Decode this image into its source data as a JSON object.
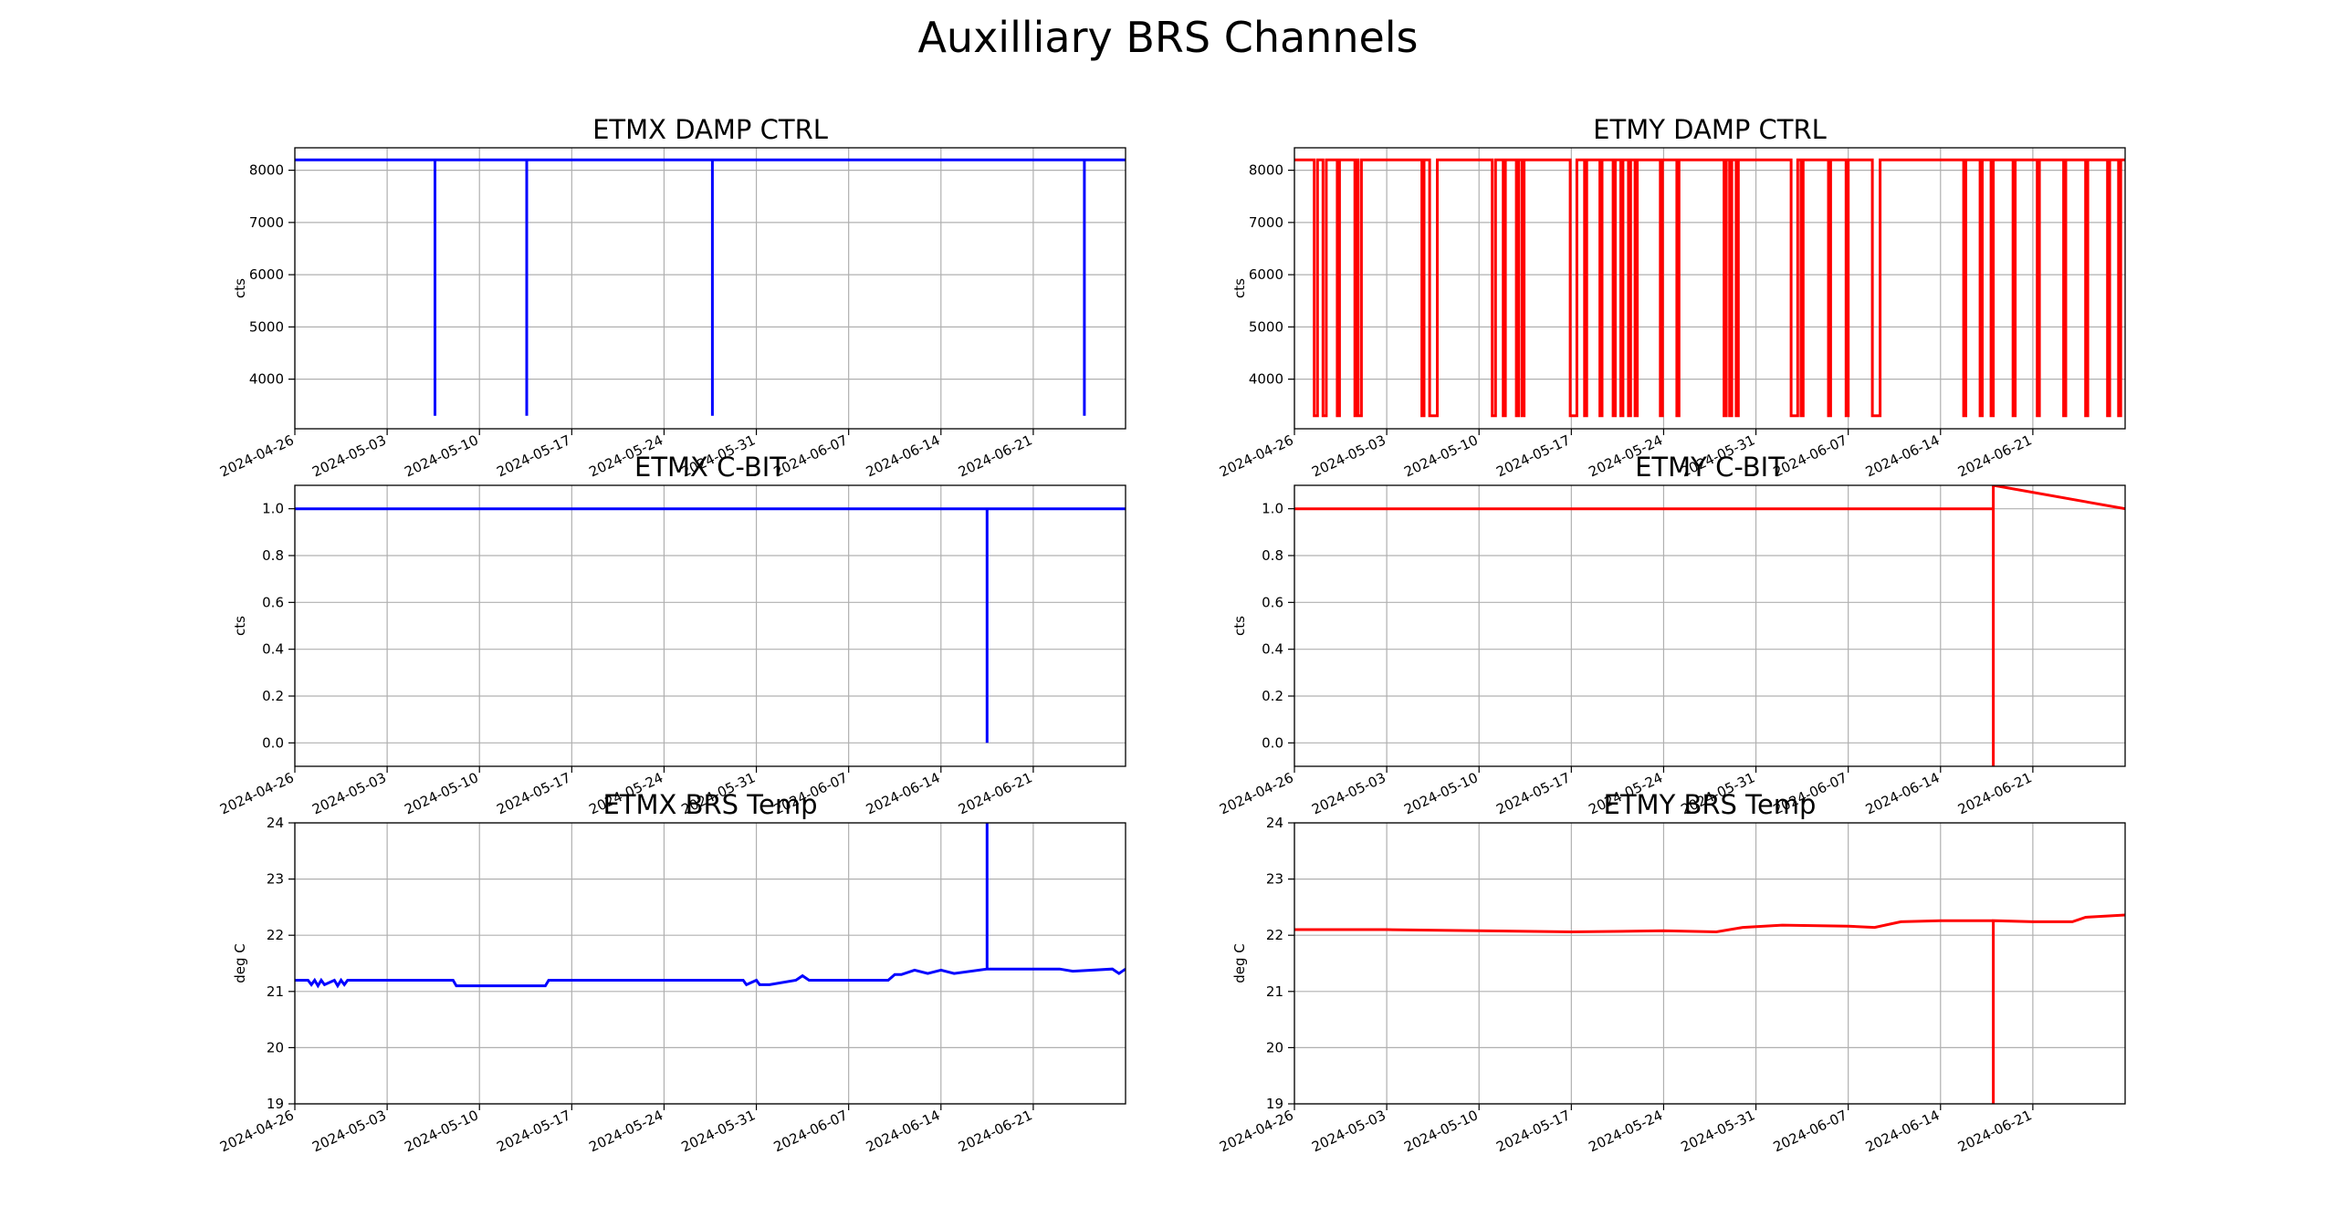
{
  "title": "Auxilliary BRS Channels",
  "x_tick_labels": [
    "2024-04-26",
    "2024-05-03",
    "2024-05-10",
    "2024-05-17",
    "2024-05-24",
    "2024-05-31",
    "2024-06-07",
    "2024-06-14",
    "2024-06-21"
  ],
  "chart_data": [
    {
      "type": "line",
      "title": "ETMX DAMP CTRL",
      "ylabel": "cts",
      "xlim": [
        "2024-04-26",
        "2024-06-28"
      ],
      "ylim": [
        3050,
        8430
      ],
      "yticks": [
        4000,
        5000,
        6000,
        7000,
        8000
      ],
      "grid": true,
      "color": "#0000ff",
      "kind": "step",
      "baseline": 8200,
      "series": [
        {
          "x": [
            "2024-04-26",
            "2024-05-06 15:00",
            "2024-05-06 15:00",
            "2024-05-06 15:00",
            "2024-05-13 14:00",
            "2024-05-13 14:00",
            "2024-05-13 14:00",
            "2024-05-27 16:00",
            "2024-05-27 16:00",
            "2024-05-27 16:00",
            "2024-06-24 21:00",
            "2024-06-24 21:00",
            "2024-06-24 21:00",
            "2024-06-28"
          ],
          "y": [
            8200,
            8200,
            3300,
            8200,
            8200,
            3300,
            8200,
            8200,
            3300,
            8200,
            8200,
            3300,
            8200,
            8200
          ]
        }
      ]
    },
    {
      "type": "line",
      "title": "ETMY DAMP CTRL",
      "ylabel": "cts",
      "xlim": [
        "2024-04-26",
        "2024-06-28"
      ],
      "ylim": [
        3050,
        8430
      ],
      "yticks": [
        4000,
        5000,
        6000,
        7000,
        8000
      ],
      "grid": true,
      "color": "#ff0000",
      "kind": "step",
      "high": 8200,
      "low": 3300,
      "low_intervals": [
        [
          "2024-04-27 12:00",
          "2024-04-27 18:00"
        ],
        [
          "2024-04-28 04:00",
          "2024-04-28 10:00"
        ],
        [
          "2024-04-29 06:00",
          "2024-04-29 10:00"
        ],
        [
          "2024-04-30 14:00",
          "2024-04-30 18:00"
        ],
        [
          "2024-04-30 20:00",
          "2024-05-01 02:00"
        ],
        [
          "2024-05-05 16:00",
          "2024-05-05 20:00"
        ],
        [
          "2024-05-06 06:00",
          "2024-05-06 20:00"
        ],
        [
          "2024-05-11 00:00",
          "2024-05-11 06:00"
        ],
        [
          "2024-05-11 20:00",
          "2024-05-12 00:00"
        ],
        [
          "2024-05-12 20:00",
          "2024-05-13 00:00"
        ],
        [
          "2024-05-13 06:00",
          "2024-05-13 10:00"
        ],
        [
          "2024-05-16 22:00",
          "2024-05-17 10:00"
        ],
        [
          "2024-05-18 00:00",
          "2024-05-18 04:00"
        ],
        [
          "2024-05-19 04:00",
          "2024-05-19 08:00"
        ],
        [
          "2024-05-20 04:00",
          "2024-05-20 08:00"
        ],
        [
          "2024-05-20 18:00",
          "2024-05-20 22:00"
        ],
        [
          "2024-05-21 08:00",
          "2024-05-21 12:00"
        ],
        [
          "2024-05-21 20:00",
          "2024-05-22 00:00"
        ],
        [
          "2024-05-23 18:00",
          "2024-05-23 22:00"
        ],
        [
          "2024-05-25 00:00",
          "2024-05-25 04:00"
        ],
        [
          "2024-05-28 14:00",
          "2024-05-28 18:00"
        ],
        [
          "2024-05-29 00:00",
          "2024-05-29 04:00"
        ],
        [
          "2024-05-29 12:00",
          "2024-05-29 16:00"
        ],
        [
          "2024-06-02 16:00",
          "2024-06-03 04:00"
        ],
        [
          "2024-06-03 10:00",
          "2024-06-03 14:00"
        ],
        [
          "2024-06-05 12:00",
          "2024-06-05 16:00"
        ],
        [
          "2024-06-06 20:00",
          "2024-06-07 00:00"
        ],
        [
          "2024-06-08 20:00",
          "2024-06-09 10:00"
        ],
        [
          "2024-06-15 18:00",
          "2024-06-15 22:00"
        ],
        [
          "2024-06-17 00:00",
          "2024-06-17 04:00"
        ],
        [
          "2024-06-17 20:00",
          "2024-06-18 00:00"
        ],
        [
          "2024-06-19 12:00",
          "2024-06-19 16:00"
        ],
        [
          "2024-06-21 08:00",
          "2024-06-21 12:00"
        ],
        [
          "2024-06-23 08:00",
          "2024-06-23 12:00"
        ],
        [
          "2024-06-25 00:00",
          "2024-06-25 04:00"
        ],
        [
          "2024-06-26 16:00",
          "2024-06-26 20:00"
        ],
        [
          "2024-06-27 12:00",
          "2024-06-27 16:00"
        ]
      ]
    },
    {
      "type": "line",
      "title": "ETMX C-BIT",
      "ylabel": "cts",
      "xlim": [
        "2024-04-26",
        "2024-06-28"
      ],
      "ylim": [
        -0.1,
        1.1
      ],
      "yticks": [
        0.0,
        0.2,
        0.4,
        0.6,
        0.8,
        1.0
      ],
      "grid": true,
      "color": "#0000ff",
      "series": [
        {
          "x": [
            "2024-04-26",
            "2024-06-17 12:00",
            "2024-06-17 12:00",
            "2024-06-17 12:00",
            "2024-06-28"
          ],
          "y": [
            1.0,
            1.0,
            0.0,
            1.0,
            1.0
          ]
        }
      ]
    },
    {
      "type": "line",
      "title": "ETMY C-BIT",
      "ylabel": "cts",
      "xlim": [
        "2024-04-26",
        "2024-06-28"
      ],
      "ylim": [
        -0.1,
        1.1
      ],
      "yticks": [
        0.0,
        0.2,
        0.4,
        0.6,
        0.8,
        1.0
      ],
      "grid": true,
      "color": "#ff0000",
      "series": [
        {
          "x": [
            "2024-04-26",
            "2024-06-18",
            "2024-06-18",
            "2024-06-18",
            "2024-06-28"
          ],
          "y": [
            1.0,
            1.0,
            -0.1,
            1.1,
            1.0
          ]
        }
      ]
    },
    {
      "type": "line",
      "title": "ETMX BRS Temp",
      "ylabel": "deg C",
      "xlim": [
        "2024-04-26",
        "2024-06-28"
      ],
      "ylim": [
        19,
        24
      ],
      "yticks": [
        19,
        20,
        21,
        22,
        23,
        24
      ],
      "grid": true,
      "color": "#0000ff",
      "series": [
        {
          "x": [
            "2024-04-26",
            "2024-04-27",
            "2024-04-27 06:00",
            "2024-04-27 12:00",
            "2024-04-27 18:00",
            "2024-04-28",
            "2024-04-28 06:00",
            "2024-04-29",
            "2024-04-29 06:00",
            "2024-04-29 12:00",
            "2024-04-29 18:00",
            "2024-04-30",
            "2024-05-08",
            "2024-05-08 06:00",
            "2024-05-09",
            "2024-05-09 06:00",
            "2024-05-15",
            "2024-05-15 06:00",
            "2024-05-30",
            "2024-05-30 06:00",
            "2024-05-31",
            "2024-05-31 06:00",
            "2024-06-01",
            "2024-06-03",
            "2024-06-03 12:00",
            "2024-06-04",
            "2024-06-05",
            "2024-06-10",
            "2024-06-10 12:00",
            "2024-06-11",
            "2024-06-12",
            "2024-06-13",
            "2024-06-14",
            "2024-06-15",
            "2024-06-17 12:00",
            "2024-06-17 12:00",
            "2024-06-17 12:00",
            "2024-06-23",
            "2024-06-24",
            "2024-06-27",
            "2024-06-27 12:00",
            "2024-06-28"
          ],
          "y": [
            21.2,
            21.2,
            21.12,
            21.2,
            21.1,
            21.2,
            21.12,
            21.2,
            21.1,
            21.2,
            21.12,
            21.2,
            21.2,
            21.1,
            21.1,
            21.1,
            21.1,
            21.2,
            21.2,
            21.12,
            21.2,
            21.12,
            21.12,
            21.2,
            21.28,
            21.2,
            21.2,
            21.2,
            21.3,
            21.3,
            21.38,
            21.32,
            21.38,
            21.32,
            21.4,
            24.0,
            21.4,
            21.4,
            21.36,
            21.4,
            21.32,
            21.4
          ]
        }
      ]
    },
    {
      "type": "line",
      "title": "ETMY BRS Temp",
      "ylabel": "deg C",
      "xlim": [
        "2024-04-26",
        "2024-06-28"
      ],
      "ylim": [
        19,
        24
      ],
      "yticks": [
        19,
        20,
        21,
        22,
        23,
        24
      ],
      "grid": true,
      "color": "#ff0000",
      "series": [
        {
          "x": [
            "2024-04-26",
            "2024-05-03",
            "2024-05-10",
            "2024-05-17",
            "2024-05-24",
            "2024-05-28",
            "2024-05-30",
            "2024-06-02",
            "2024-06-07",
            "2024-06-09",
            "2024-06-11",
            "2024-06-14",
            "2024-06-18",
            "2024-06-18",
            "2024-06-18",
            "2024-06-21",
            "2024-06-24",
            "2024-06-25",
            "2024-06-28"
          ],
          "y": [
            22.1,
            22.1,
            22.08,
            22.06,
            22.08,
            22.06,
            22.14,
            22.18,
            22.16,
            22.14,
            22.24,
            22.26,
            22.26,
            19.0,
            22.26,
            22.24,
            22.24,
            22.32,
            22.36
          ]
        }
      ]
    }
  ]
}
